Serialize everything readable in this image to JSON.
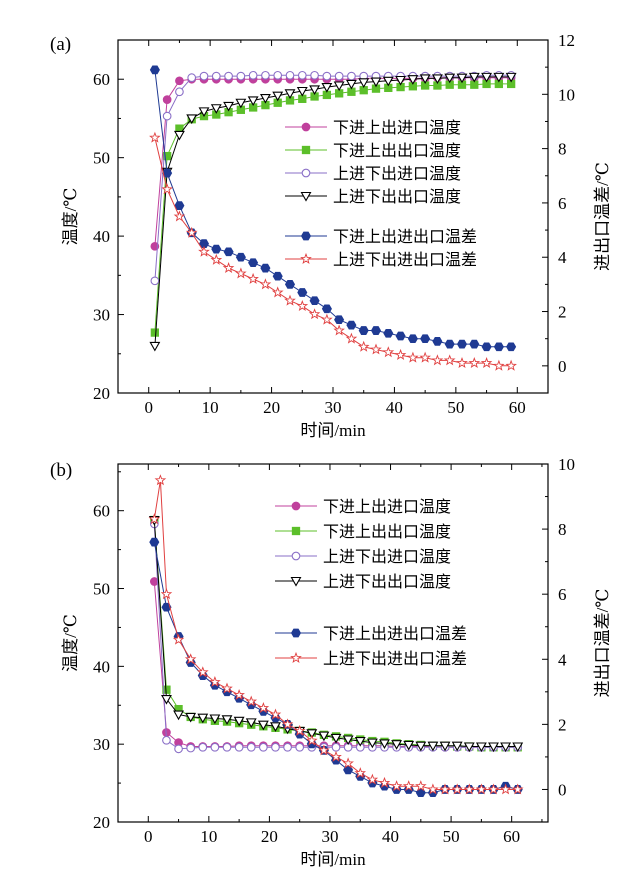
{
  "chart_data": [
    {
      "type": "line",
      "panel_label": "(a)",
      "xlabel": "时间/min",
      "ylabel": "温度/℃",
      "y2label": "进出口温差/℃",
      "xlim": [
        -5,
        65
      ],
      "ylim": [
        20,
        65
      ],
      "y2lim": [
        -1,
        12
      ],
      "xticks": [
        0,
        10,
        20,
        30,
        40,
        50,
        60
      ],
      "yticks": [
        20,
        30,
        40,
        50,
        60
      ],
      "y2ticks": [
        0,
        2,
        4,
        6,
        8,
        10,
        12
      ],
      "legend_position": "right",
      "series": [
        {
          "name": "下进上出进口温度",
          "axis": "left",
          "color": "#c0409c",
          "marker": "circle",
          "filled": true,
          "x": [
            1,
            3,
            5,
            7,
            9,
            11,
            13,
            15,
            17,
            19,
            21,
            23,
            25,
            27,
            29,
            31,
            33,
            35,
            37,
            39,
            41,
            43,
            45,
            47,
            49,
            51,
            53,
            55,
            57,
            59
          ],
          "y": [
            38.7,
            57.4,
            59.8,
            60.0,
            60.0,
            60.0,
            60.0,
            60.0,
            60.0,
            60.0,
            60.0,
            60.0,
            60.0,
            60.0,
            60.0,
            60.0,
            60.0,
            60.1,
            60.1,
            60.1,
            60.1,
            60.1,
            60.1,
            60.2,
            60.2,
            60.2,
            60.2,
            60.2,
            60.2,
            60.2
          ]
        },
        {
          "name": "下进上出出口温度",
          "axis": "left",
          "color": "#5cbf2a",
          "marker": "square",
          "filled": true,
          "x": [
            1,
            3,
            5,
            7,
            9,
            11,
            13,
            15,
            17,
            19,
            21,
            23,
            25,
            27,
            29,
            31,
            33,
            35,
            37,
            39,
            41,
            43,
            45,
            47,
            49,
            51,
            53,
            55,
            57,
            59
          ],
          "y": [
            27.7,
            50.2,
            53.7,
            54.9,
            55.3,
            55.5,
            55.8,
            56.1,
            56.4,
            56.7,
            57.0,
            57.3,
            57.5,
            57.8,
            58.0,
            58.2,
            58.4,
            58.6,
            58.8,
            58.9,
            59.0,
            59.1,
            59.2,
            59.2,
            59.3,
            59.3,
            59.3,
            59.4,
            59.4,
            59.4
          ]
        },
        {
          "name": "上进下出进口温度",
          "axis": "left",
          "color": "#8a6fc7",
          "marker": "circle",
          "filled": false,
          "x": [
            1,
            3,
            5,
            7,
            9,
            11,
            13,
            15,
            17,
            19,
            21,
            23,
            25,
            27,
            29,
            31,
            33,
            35,
            37,
            39,
            41,
            43,
            45,
            47,
            49,
            51,
            53,
            55,
            57,
            59
          ],
          "y": [
            34.3,
            55.3,
            58.4,
            60.2,
            60.4,
            60.4,
            60.4,
            60.4,
            60.5,
            60.5,
            60.5,
            60.5,
            60.5,
            60.5,
            60.4,
            60.4,
            60.4,
            60.4,
            60.4,
            60.4,
            60.4,
            60.4,
            60.4,
            60.4,
            60.4,
            60.4,
            60.4,
            60.5,
            60.5,
            60.5
          ]
        },
        {
          "name": "上进下出出口温度",
          "axis": "left",
          "color": "#000000",
          "marker": "triangle-down",
          "filled": false,
          "x": [
            1,
            3,
            5,
            7,
            9,
            11,
            13,
            15,
            17,
            19,
            21,
            23,
            25,
            27,
            29,
            31,
            33,
            35,
            37,
            39,
            41,
            43,
            45,
            47,
            49,
            51,
            53,
            55,
            57,
            59
          ],
          "y": [
            26.0,
            48.2,
            52.9,
            55.0,
            55.9,
            56.3,
            56.6,
            57.0,
            57.3,
            57.6,
            57.9,
            58.2,
            58.5,
            58.7,
            59.0,
            59.2,
            59.4,
            59.6,
            59.7,
            59.8,
            59.9,
            60.0,
            60.1,
            60.1,
            60.2,
            60.2,
            60.3,
            60.3,
            60.3,
            60.3
          ]
        },
        {
          "name": "下进上出进出口温差",
          "axis": "right",
          "color": "#1f3a93",
          "marker": "hexagon",
          "filled": true,
          "x": [
            1,
            3,
            5,
            7,
            9,
            11,
            13,
            15,
            17,
            19,
            21,
            23,
            25,
            27,
            29,
            31,
            33,
            35,
            37,
            39,
            41,
            43,
            45,
            47,
            49,
            51,
            53,
            55,
            57,
            59
          ],
          "y": [
            10.9,
            7.1,
            5.9,
            4.9,
            4.5,
            4.3,
            4.2,
            4.0,
            3.8,
            3.6,
            3.3,
            3.0,
            2.7,
            2.4,
            2.1,
            1.7,
            1.5,
            1.3,
            1.3,
            1.2,
            1.1,
            1.0,
            1.0,
            0.9,
            0.8,
            0.8,
            0.8,
            0.7,
            0.7,
            0.7
          ]
        },
        {
          "name": "上进下出进出口温差",
          "axis": "right",
          "color": "#e04040",
          "marker": "star",
          "filled": false,
          "x": [
            1,
            3,
            5,
            7,
            9,
            11,
            13,
            15,
            17,
            19,
            21,
            23,
            25,
            27,
            29,
            31,
            33,
            35,
            37,
            39,
            41,
            43,
            45,
            47,
            49,
            51,
            53,
            55,
            57,
            59
          ],
          "y": [
            8.4,
            6.5,
            5.5,
            4.9,
            4.2,
            3.9,
            3.6,
            3.4,
            3.2,
            3.0,
            2.7,
            2.4,
            2.2,
            1.9,
            1.7,
            1.3,
            1.0,
            0.7,
            0.6,
            0.5,
            0.4,
            0.3,
            0.3,
            0.2,
            0.2,
            0.1,
            0.1,
            0.1,
            0.0,
            0.0
          ]
        }
      ]
    },
    {
      "type": "line",
      "panel_label": "(b)",
      "xlabel": "时间/min",
      "ylabel": "温度/℃",
      "y2label": "进出口温差/℃",
      "xlim": [
        -5,
        66
      ],
      "ylim": [
        20,
        66
      ],
      "y2lim": [
        -1,
        10
      ],
      "xticks": [
        0,
        10,
        20,
        30,
        40,
        50,
        60
      ],
      "yticks": [
        20,
        30,
        40,
        50,
        60
      ],
      "y2ticks": [
        0,
        2,
        4,
        6,
        8,
        10
      ],
      "legend_position": "right",
      "series": [
        {
          "name": "下进上出进口温度",
          "axis": "left",
          "color": "#c0409c",
          "marker": "circle",
          "filled": true,
          "x": [
            1,
            3,
            5,
            7,
            9,
            11,
            13,
            15,
            17,
            19,
            21,
            23,
            25,
            27,
            29,
            31,
            33,
            35,
            37,
            39,
            41,
            43,
            45,
            47,
            49,
            51,
            53,
            55,
            57,
            59,
            61
          ],
          "y": [
            50.9,
            31.5,
            30.2,
            29.7,
            29.7,
            29.7,
            29.7,
            29.8,
            29.8,
            29.8,
            29.8,
            29.8,
            29.8,
            29.8,
            29.8,
            29.8,
            29.8,
            29.8,
            29.8,
            29.8,
            29.7,
            29.7,
            29.7,
            29.7,
            29.6,
            29.6,
            29.6,
            29.6,
            29.6,
            29.6,
            29.6
          ]
        },
        {
          "name": "下进上出出口温度",
          "axis": "left",
          "color": "#5cbf2a",
          "marker": "square",
          "filled": true,
          "x": [
            1,
            3,
            5,
            7,
            9,
            11,
            13,
            15,
            17,
            19,
            21,
            23,
            25,
            27,
            29,
            31,
            33,
            35,
            37,
            39,
            41,
            43,
            45,
            47,
            49,
            51,
            53,
            55,
            57,
            59,
            61
          ],
          "y": [
            58.8,
            37.0,
            34.5,
            33.5,
            33.2,
            33.0,
            32.9,
            32.7,
            32.5,
            32.3,
            32.1,
            31.9,
            31.7,
            31.5,
            31.2,
            31.0,
            30.8,
            30.6,
            30.4,
            30.3,
            30.1,
            30.0,
            29.9,
            29.8,
            29.8,
            29.7,
            29.7,
            29.6,
            29.6,
            29.6,
            29.6
          ]
        },
        {
          "name": "上进下出进口温度",
          "axis": "left",
          "color": "#8a6fc7",
          "marker": "circle",
          "filled": false,
          "x": [
            1,
            3,
            5,
            7,
            9,
            11,
            13,
            15,
            17,
            19,
            21,
            23,
            25,
            27,
            29,
            31,
            33,
            35,
            37,
            39,
            41,
            43,
            45,
            47,
            49,
            51,
            53,
            55,
            57,
            59,
            61
          ],
          "y": [
            58.3,
            30.5,
            29.4,
            29.5,
            29.6,
            29.6,
            29.6,
            29.6,
            29.6,
            29.6,
            29.6,
            29.6,
            29.6,
            29.6,
            29.6,
            29.6,
            29.6,
            29.6,
            29.6,
            29.6,
            29.6,
            29.6,
            29.6,
            29.6,
            29.6,
            29.6,
            29.6,
            29.6,
            29.6,
            29.6,
            29.6
          ]
        },
        {
          "name": "上进下出出口温度",
          "axis": "left",
          "color": "#000000",
          "marker": "triangle-down",
          "filled": false,
          "x": [
            1,
            3,
            5,
            7,
            9,
            11,
            13,
            15,
            17,
            19,
            21,
            23,
            25,
            27,
            29,
            31,
            33,
            35,
            37,
            39,
            41,
            43,
            45,
            47,
            49,
            51,
            53,
            55,
            57,
            59,
            61
          ],
          "y": [
            58.8,
            35.8,
            33.8,
            33.5,
            33.4,
            33.3,
            33.2,
            33.0,
            32.8,
            32.5,
            32.3,
            32.0,
            31.7,
            31.4,
            31.1,
            30.8,
            30.6,
            30.4,
            30.2,
            30.1,
            30.0,
            29.9,
            29.8,
            29.8,
            29.8,
            29.8,
            29.7,
            29.7,
            29.7,
            29.7,
            29.7
          ]
        },
        {
          "name": "下进上出进出口温差",
          "axis": "right",
          "color": "#1f3a93",
          "marker": "hexagon",
          "filled": true,
          "x": [
            1,
            3,
            5,
            7,
            9,
            11,
            13,
            15,
            17,
            19,
            21,
            23,
            25,
            27,
            29,
            31,
            33,
            35,
            37,
            39,
            41,
            43,
            45,
            47,
            49,
            51,
            53,
            55,
            57,
            59,
            61
          ],
          "y": [
            7.6,
            5.6,
            4.7,
            3.9,
            3.5,
            3.2,
            3.0,
            2.8,
            2.6,
            2.4,
            2.2,
            2.0,
            1.7,
            1.4,
            1.2,
            0.9,
            0.6,
            0.4,
            0.2,
            0.1,
            0.0,
            0.0,
            -0.1,
            -0.1,
            0.0,
            0.0,
            0.0,
            0.0,
            0.0,
            0.1,
            0.0
          ]
        },
        {
          "name": "上进下出进出口温差",
          "axis": "right",
          "color": "#e04040",
          "marker": "star",
          "filled": false,
          "x": [
            1,
            2,
            3,
            5,
            7,
            9,
            11,
            13,
            15,
            17,
            19,
            21,
            23,
            25,
            27,
            29,
            31,
            33,
            35,
            37,
            39,
            41,
            43,
            45,
            47,
            49,
            51,
            53,
            55,
            57,
            59,
            61
          ],
          "y": [
            8.3,
            9.5,
            6.0,
            4.6,
            4.0,
            3.6,
            3.3,
            3.1,
            2.9,
            2.7,
            2.5,
            2.3,
            2.0,
            1.8,
            1.5,
            1.2,
            1.0,
            0.8,
            0.5,
            0.3,
            0.2,
            0.1,
            0.1,
            0.1,
            0.0,
            0.0,
            0.0,
            0.0,
            0.0,
            0.0,
            0.0,
            0.0
          ]
        }
      ]
    }
  ]
}
